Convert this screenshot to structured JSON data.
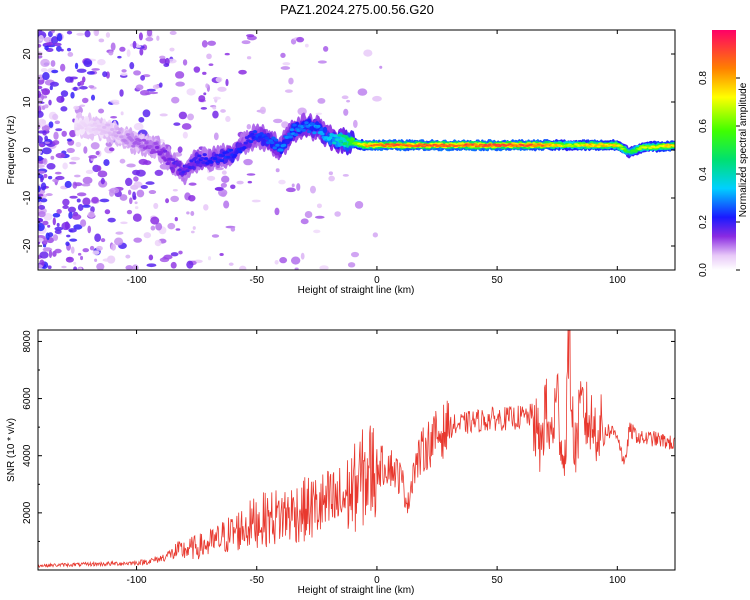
{
  "title": "PAZ1.2024.275.00.56.G20",
  "chart_data": [
    {
      "type": "heatmap",
      "xlabel": "Height of straight line (km)",
      "ylabel": "Frequency (Hz)",
      "xlim": [
        -141,
        124
      ],
      "ylim": [
        -25,
        25
      ],
      "x_ticks": [
        -100,
        -50,
        0,
        50,
        100
      ],
      "y_ticks": [
        -20,
        -10,
        0,
        10,
        20
      ],
      "colorbar": {
        "label": "Normalized spectral amplitude",
        "range": [
          0,
          1
        ],
        "ticks": [
          "0.0",
          "0.2",
          "0.4",
          "0.6",
          "0.8"
        ],
        "tick_values": [
          0,
          0.2,
          0.4,
          0.6,
          0.8
        ]
      },
      "ridge": {
        "x": [
          -120,
          -110,
          -100,
          -90,
          -85,
          -80,
          -75,
          -70,
          -60,
          -55,
          -50,
          -45,
          -40,
          -35,
          -30,
          -25,
          -20,
          -15,
          -10,
          -5,
          0,
          5,
          10,
          20,
          30,
          40,
          50,
          60,
          70,
          80,
          90,
          100,
          105,
          110,
          124
        ],
        "y": [
          5,
          4,
          1.5,
          0,
          -3,
          -4.5,
          -2,
          -2,
          -1,
          1.5,
          3,
          2,
          0.5,
          4,
          5,
          4.5,
          2.5,
          2,
          1.5,
          1,
          1,
          1,
          1,
          1,
          1,
          1,
          1,
          1,
          1,
          1,
          1,
          1,
          -0.5,
          0.5,
          1
        ],
        "peak": [
          0.05,
          0.08,
          0.12,
          0.15,
          0.18,
          0.2,
          0.22,
          0.22,
          0.25,
          0.22,
          0.25,
          0.28,
          0.3,
          0.3,
          0.3,
          0.32,
          0.35,
          0.45,
          0.6,
          0.85,
          0.95,
          0.95,
          0.95,
          0.95,
          0.95,
          0.95,
          0.95,
          0.95,
          0.9,
          0.7,
          0.85,
          0.8,
          0.55,
          0.7,
          0.85
        ]
      }
    },
    {
      "type": "line",
      "xlabel": "Height of straight line (km)",
      "ylabel": "SNR (10 * v/v)",
      "xlim": [
        -141,
        124
      ],
      "ylim": [
        0,
        8400
      ],
      "x_ticks": [
        -100,
        -50,
        0,
        50,
        100
      ],
      "y_ticks": [
        2000,
        4000,
        6000,
        8000
      ],
      "series": [
        {
          "color": "#e8382e",
          "x": [
            -141,
            -130,
            -120,
            -110,
            -100,
            -95,
            -90,
            -85,
            -80,
            -75,
            -70,
            -65,
            -60,
            -55,
            -50,
            -45,
            -40,
            -35,
            -30,
            -25,
            -20,
            -15,
            -10,
            -5,
            0,
            5,
            10,
            13,
            15,
            20,
            25,
            30,
            35,
            40,
            45,
            50,
            55,
            60,
            65,
            68,
            70,
            72,
            75,
            78,
            80,
            82,
            85,
            90,
            95,
            100,
            103,
            105,
            110,
            115,
            120,
            124
          ],
          "y": [
            150,
            180,
            200,
            220,
            250,
            300,
            400,
            600,
            700,
            800,
            900,
            1100,
            1300,
            1500,
            1700,
            1800,
            1900,
            2000,
            2100,
            2200,
            2300,
            2400,
            2800,
            3300,
            3600,
            3700,
            3200,
            2300,
            3500,
            4300,
            4700,
            5000,
            5100,
            5200,
            5250,
            5300,
            5300,
            5350,
            5400,
            4200,
            5700,
            4500,
            6000,
            3500,
            8300,
            4000,
            5600,
            5000,
            4900,
            4800,
            3600,
            4900,
            4600,
            4600,
            4500,
            4400
          ]
        }
      ]
    }
  ]
}
